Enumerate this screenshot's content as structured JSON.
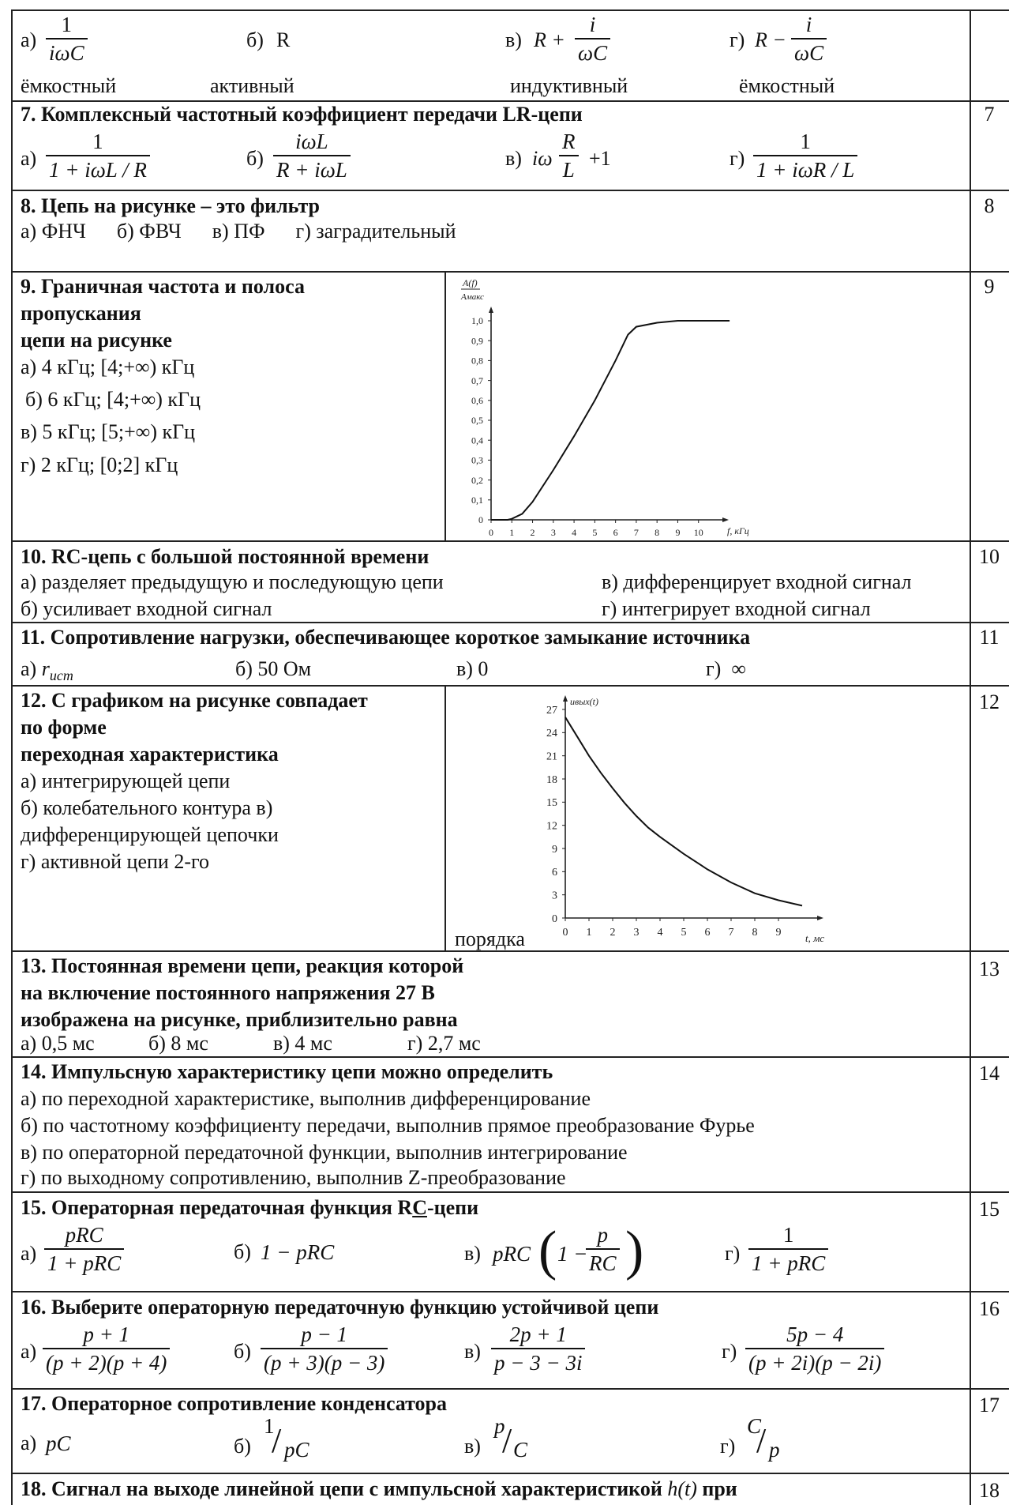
{
  "row6": {
    "a_label": "а)",
    "a_num": "1",
    "a_den": "iωC",
    "a_word": "ёмкостный",
    "b_label": "б)",
    "b_expr": "R",
    "b_word": "активный",
    "c_label": "в)",
    "c_pre": "R +",
    "c_num": "i",
    "c_den": "ωC",
    "c_word": "индуктивный",
    "d_label": "г)",
    "d_pre": "R −",
    "d_num": "i",
    "d_den": "ωC",
    "d_word": "ёмкостный"
  },
  "q7": {
    "title": "7. Комплексный частотный коэффициент передачи LR-цепи",
    "number": "7",
    "a_label": "а)",
    "a_num": "1",
    "a_den": "1 + iωL / R",
    "b_label": "б)",
    "b_num": "iωL",
    "b_den": "R + iωL",
    "c_label": "в)",
    "c_pre": "iω",
    "c_num": "R",
    "c_den": "L",
    "c_post": "+1",
    "d_label": "г)",
    "d_num": "1",
    "d_den": "1 + iωR / L"
  },
  "q8": {
    "title": "8. Цепь на рисунке – это фильтр",
    "number": "8",
    "options": "а) ФНЧ      б) ФВЧ      в) ПФ      г) заградительный"
  },
  "q9": {
    "title_l1": "9. Граничная частота и полоса",
    "title_l2": "пропускания",
    "title_l3": "цепи на рисунке",
    "number": "9",
    "opt_a": "а) 4 кГц;  [4;+∞) кГц",
    "opt_b": "б) 6 кГц;  [4;+∞) кГц",
    "opt_c": "в)  5 кГц;  [5;+∞) кГц",
    "opt_d": "г) 2 кГц;  [0;2] кГц"
  },
  "q10": {
    "title": "10. RC-цепь с большой постоянной времени",
    "number": "10",
    "opt_a": "а) разделяет предыдущую и последующую цепи",
    "opt_b": "б) усиливает входной сигнал",
    "opt_c": "в) дифференцирует входной сигнал",
    "opt_d": "г) интегрирует входной сигнал"
  },
  "q11": {
    "title": "11. Сопротивление нагрузки, обеспечивающее короткое замыкание источника",
    "number": "11",
    "opt_a_label": "а)",
    "opt_a_r": "r",
    "opt_a_sub": "ист",
    "opt_b": "б) 50 Ом",
    "opt_c": "в) 0",
    "opt_d": "г)  ∞"
  },
  "q12": {
    "title_l1": "12. С графиком на рисунке совпадает",
    "title_l2": "по форме",
    "title_l3": "переходная характеристика",
    "number": "12",
    "opt_1": "а) интегрирующей цепи",
    "opt_2": "б) колебательного контура в)",
    "opt_3": "дифференцирующей цепочки",
    "opt_4": "г) активной цепи 2-го",
    "opt_5": "порядка"
  },
  "q13": {
    "title_l1": "13. Постоянная времени цепи, реакция которой",
    "title_l2": "на включение постоянного напряжения 27 В",
    "title_l3": "изображена на рисунке, приблизительно равна",
    "number": "13",
    "opt_a": "а) 0,5 мс",
    "opt_b": "б) 8 мс",
    "opt_c": "в) 4 мс",
    "opt_d": "г) 2,7 мс"
  },
  "q14": {
    "title": "14. Импульсную характеристику цепи можно определить",
    "number": "14",
    "opt_a": "а) по переходной характеристике, выполнив дифференцирование",
    "opt_b": "б) по частотному коэффициенту передачи, выполнив прямое преобразование Фурье",
    "opt_c": "в) по операторной передаточной функции, выполнив интегрирование",
    "opt_d": "г) по выходному сопротивлению, выполнив Z-преобразование"
  },
  "q15": {
    "title_pre": "15. Операторная передаточная функция R",
    "title_u": "C",
    "title_post": "-цепи",
    "number": "15",
    "a_label": "а)",
    "a_num": "pRC",
    "a_den": "1 + pRC",
    "b_label": "б)",
    "b_expr": "1 − pRC",
    "c_label": "в)",
    "c_pre": "pRC",
    "c_in": "1 −",
    "c_num": "p",
    "c_den": "RC",
    "d_label": "г)",
    "d_num": "1",
    "d_den": "1 + pRC"
  },
  "q16": {
    "title": "16. Выберите операторную передаточную функцию устойчивой цепи",
    "number": "16",
    "a_label": "а)",
    "a_num": "p + 1",
    "a_den": "(p + 2)(p + 4)",
    "b_label": "б)",
    "b_num": "p − 1",
    "b_den": "(p + 3)(p − 3)",
    "c_label": "в)",
    "c_num": "2p + 1",
    "c_den": "p − 3 − 3i",
    "d_label": "г)",
    "d_num": "5p − 4",
    "d_den": "(p + 2i)(p − 2i)"
  },
  "q17": {
    "title": "17. Операторное сопротивление конденсатора",
    "number": "17",
    "a_label": "а)",
    "a_expr": "pC",
    "b_label": "б)",
    "b_top": "1",
    "b_bot": "pC",
    "c_label": "в)",
    "c_top": "p",
    "c_bot": "C",
    "d_label": "г)",
    "d_top": "C",
    "d_bot": "p"
  },
  "q18": {
    "title_pre": "18. Сигнал на выходе линейной цепи с импульсной характеристикой",
    "title_h": "h(t)",
    "title_post": "при",
    "number": "18"
  },
  "chart_data": [
    {
      "type": "line",
      "ylabel_top": "A(f)",
      "ylabel_bottom": "Aмакс",
      "xlabel": "f, кГц",
      "x_ticks": [
        "0",
        "1",
        "2",
        "3",
        "4",
        "5",
        "6",
        "7",
        "8",
        "9",
        "10"
      ],
      "y_ticks": [
        "0",
        "0,1",
        "0,2",
        "0,3",
        "0,4",
        "0,5",
        "0,6",
        "0,7",
        "0,8",
        "0,9",
        "1,0"
      ],
      "xlim": [
        0,
        11
      ],
      "ylim": [
        0,
        1.0
      ],
      "series": [
        {
          "x": [
            0,
            0.8,
            1.0,
            1.5,
            2.0,
            3.0,
            4.0,
            5.0,
            6.0,
            6.6,
            7.0,
            8.0,
            9.0,
            10.0,
            11.5
          ],
          "y": [
            0,
            0,
            0.005,
            0.03,
            0.09,
            0.25,
            0.42,
            0.6,
            0.8,
            0.93,
            0.97,
            0.99,
            1.0,
            1.0,
            1.0
          ]
        }
      ]
    },
    {
      "type": "line",
      "ylabel": "uвых(t)",
      "xlabel": "t, мс",
      "x_ticks": [
        "0",
        "1",
        "2",
        "3",
        "4",
        "5",
        "6",
        "7",
        "8",
        "9"
      ],
      "y_ticks": [
        "0",
        "3",
        "6",
        "9",
        "12",
        "15",
        "18",
        "21",
        "24",
        "27"
      ],
      "xlim": [
        0,
        10.5
      ],
      "ylim": [
        0,
        27
      ],
      "series": [
        {
          "x": [
            0,
            0.5,
            1,
            1.5,
            2,
            2.5,
            3,
            3.5,
            4,
            5,
            6,
            7,
            8,
            9,
            10
          ],
          "y": [
            26,
            23.5,
            21,
            18.8,
            16.8,
            14.9,
            13.2,
            11.7,
            10.5,
            8.3,
            6.3,
            4.6,
            3.2,
            2.3,
            1.6
          ]
        }
      ]
    }
  ]
}
